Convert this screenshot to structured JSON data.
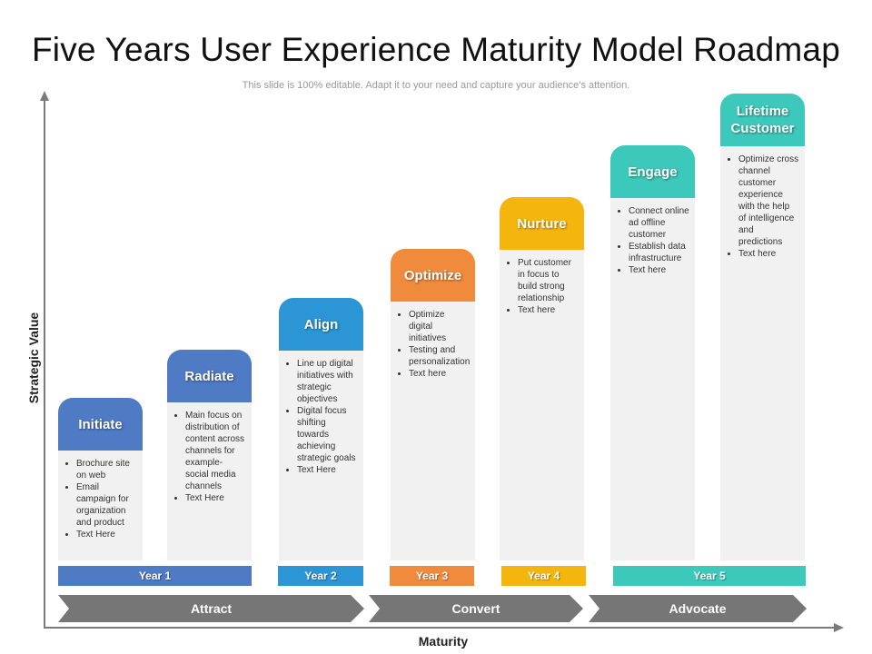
{
  "title": "Five Years User Experience Maturity Model Roadmap",
  "subtitle": "This slide is 100% editable. Adapt it to your need and capture your audience’s attention.",
  "axes": {
    "y_label": "Strategic Value",
    "x_label": "Maturity"
  },
  "stages": [
    {
      "label": "Initiate",
      "color": "#4f7ac4",
      "bullets": [
        "Brochure site on web",
        "Email campaign for organization and product",
        "Text Here"
      ]
    },
    {
      "label": "Radiate",
      "color": "#4f7ac4",
      "bullets": [
        "Main focus on distribution of content across channels for example- social media channels",
        "Text Here"
      ]
    },
    {
      "label": "Align",
      "color": "#2b95d6",
      "bullets": [
        "Line up digital initiatives with strategic objectives",
        "Digital focus shifting towards achieving strategic goals",
        "Text Here"
      ]
    },
    {
      "label": "Optimize",
      "color": "#f08a3c",
      "bullets": [
        "Optimize digital initiatives",
        "Testing and personalization",
        "Text here"
      ]
    },
    {
      "label": "Nurture",
      "color": "#f5b50f",
      "bullets": [
        "Put customer in focus to build strong relationship",
        "Text here"
      ]
    },
    {
      "label": "Engage",
      "color": "#3cc8ba",
      "bullets": [
        "Connect online ad offline customer",
        "Establish data infrastructure",
        "Text here"
      ]
    },
    {
      "label": "Lifetime Customer",
      "color": "#3cc8ba",
      "bullets": [
        "Optimize cross channel customer experience with the help of intelligence and predictions",
        "Text here"
      ]
    }
  ],
  "years": [
    {
      "label": "Year 1",
      "color": "#4f7ac4"
    },
    {
      "label": "Year 2",
      "color": "#2b95d6"
    },
    {
      "label": "Year 3",
      "color": "#f08a3c"
    },
    {
      "label": "Year 4",
      "color": "#f5b50f"
    },
    {
      "label": "Year 5",
      "color": "#3cc8ba"
    }
  ],
  "phases": [
    {
      "label": "Attract",
      "color": "#767676"
    },
    {
      "label": "Convert",
      "color": "#767676"
    },
    {
      "label": "Advocate",
      "color": "#767676"
    }
  ]
}
